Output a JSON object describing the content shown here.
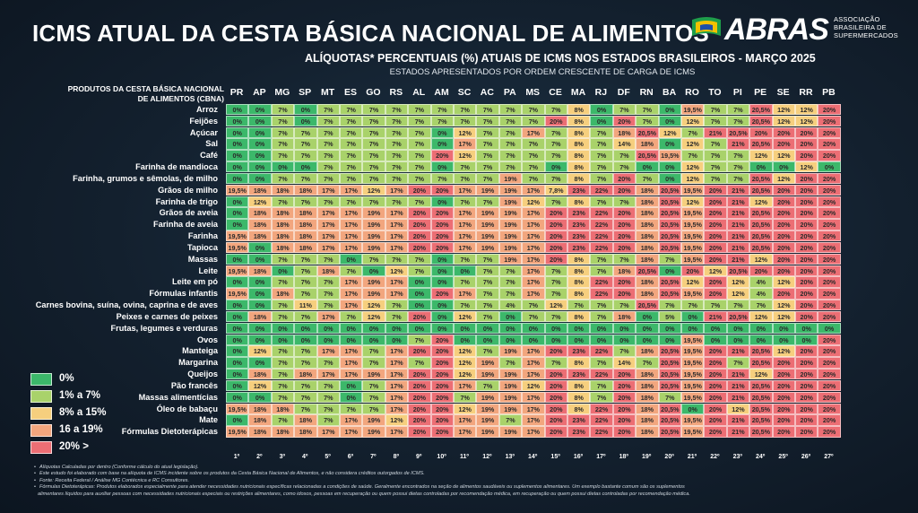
{
  "title": "ICMS ATUAL DA CESTA BÁSICA NACIONAL DE ALIMENTOS",
  "subtitle": "ALÍQUOTAS* PERCENTUAIS (%) ATUAIS DE ICMS NOS ESTADOS BRASILEIROS - MARÇO 2025",
  "subtitle2": "ESTADOS APRESENTADOS POR ORDEM CRESCENTE DE CARGA DE ICMS",
  "logo": {
    "name": "ABRAS",
    "subtitle_lines": [
      "ASSOCIAÇÃO",
      "BRASILEIRA DE",
      "SUPERMERCADOS"
    ]
  },
  "product_header_lines": [
    "PRODUTOS DA CESTA BÁSICA NACIONAL",
    "DE ALIMENTOS (CBNA)"
  ],
  "states": [
    "PR",
    "AP",
    "MG",
    "SP",
    "MT",
    "ES",
    "GO",
    "RS",
    "AL",
    "AM",
    "SC",
    "AC",
    "PA",
    "MS",
    "CE",
    "MA",
    "RJ",
    "DF",
    "RN",
    "BA",
    "RO",
    "TO",
    "PI",
    "PE",
    "SE",
    "RR",
    "PB"
  ],
  "ranks": [
    "1º",
    "2º",
    "3º",
    "4º",
    "5º",
    "6º",
    "7º",
    "8º",
    "9º",
    "10º",
    "11º",
    "12º",
    "13º",
    "14º",
    "15º",
    "16º",
    "17º",
    "18º",
    "19º",
    "20º",
    "21º",
    "22º",
    "23º",
    "24º",
    "25º",
    "26º",
    "27º"
  ],
  "colors": {
    "0%": "#3cb86a",
    "1% a 7%": "#a9d26a",
    "8% a 15%": "#f6cf7e",
    "16 a 19%": "#f2a67e",
    "20% >": "#ec6e74"
  },
  "legend": [
    {
      "label": "0%",
      "color": "#3cb86a"
    },
    {
      "label": "1% a 7%",
      "color": "#a9d26a"
    },
    {
      "label": "8% a 15%",
      "color": "#f6cf7e"
    },
    {
      "label": "16 a 19%",
      "color": "#f2a67e"
    },
    {
      "label": "20% >",
      "color": "#ec6e74"
    }
  ],
  "rows": [
    {
      "product": "Arroz",
      "values": [
        "0%",
        "0%",
        "7%",
        "0%",
        "7%",
        "7%",
        "7%",
        "7%",
        "7%",
        "7%",
        "7%",
        "7%",
        "7%",
        "7%",
        "7%",
        "8%",
        "0%",
        "7%",
        "7%",
        "0%",
        "19,5%",
        "7%",
        "7%",
        "20,5%",
        "12%",
        "12%",
        "20%"
      ]
    },
    {
      "product": "Feijões",
      "values": [
        "0%",
        "0%",
        "7%",
        "0%",
        "7%",
        "7%",
        "7%",
        "7%",
        "7%",
        "7%",
        "7%",
        "7%",
        "7%",
        "7%",
        "20%",
        "8%",
        "0%",
        "20%",
        "7%",
        "0%",
        "12%",
        "7%",
        "7%",
        "20,5%",
        "12%",
        "12%",
        "20%"
      ]
    },
    {
      "product": "Açúcar",
      "values": [
        "0%",
        "0%",
        "7%",
        "7%",
        "7%",
        "7%",
        "7%",
        "7%",
        "7%",
        "0%",
        "12%",
        "7%",
        "7%",
        "17%",
        "7%",
        "8%",
        "7%",
        "18%",
        "20,5%",
        "12%",
        "7%",
        "21%",
        "20,5%",
        "20%",
        "20%",
        "20%",
        "20%"
      ]
    },
    {
      "product": "Sal",
      "values": [
        "0%",
        "0%",
        "7%",
        "7%",
        "7%",
        "7%",
        "7%",
        "7%",
        "7%",
        "0%",
        "17%",
        "7%",
        "7%",
        "7%",
        "7%",
        "8%",
        "7%",
        "14%",
        "18%",
        "0%",
        "12%",
        "7%",
        "21%",
        "20,5%",
        "20%",
        "20%",
        "20%"
      ]
    },
    {
      "product": "Café",
      "values": [
        "0%",
        "0%",
        "7%",
        "7%",
        "7%",
        "7%",
        "7%",
        "7%",
        "7%",
        "20%",
        "12%",
        "7%",
        "7%",
        "7%",
        "7%",
        "8%",
        "7%",
        "7%",
        "20,5%",
        "19,5%",
        "7%",
        "7%",
        "7%",
        "12%",
        "12%",
        "20%",
        "20%"
      ]
    },
    {
      "product": "Farinha de mandioca",
      "values": [
        "0%",
        "0%",
        "0%",
        "0%",
        "7%",
        "7%",
        "7%",
        "7%",
        "7%",
        "0%",
        "7%",
        "7%",
        "7%",
        "7%",
        "0%",
        "8%",
        "7%",
        "7%",
        "0%",
        "0%",
        "12%",
        "7%",
        "7%",
        "0%",
        "0%",
        "12%",
        "0%"
      ]
    },
    {
      "product": "Farinha, grumos e sêmolas, de milho",
      "values": [
        "0%",
        "0%",
        "7%",
        "7%",
        "7%",
        "7%",
        "7%",
        "7%",
        "7%",
        "7%",
        "7%",
        "7%",
        "19%",
        "7%",
        "7%",
        "8%",
        "7%",
        "20%",
        "7%",
        "0%",
        "12%",
        "7%",
        "7%",
        "20,5%",
        "12%",
        "20%",
        "20%"
      ]
    },
    {
      "product": "Grãos de milho",
      "values": [
        "19,5%",
        "18%",
        "18%",
        "18%",
        "17%",
        "17%",
        "12%",
        "17%",
        "20%",
        "20%",
        "17%",
        "19%",
        "19%",
        "17%",
        "7,8%",
        "23%",
        "22%",
        "20%",
        "18%",
        "20,5%",
        "19,5%",
        "20%",
        "21%",
        "20,5%",
        "20%",
        "20%",
        "20%"
      ]
    },
    {
      "product": "Farinha de trigo",
      "values": [
        "0%",
        "12%",
        "7%",
        "7%",
        "7%",
        "7%",
        "7%",
        "7%",
        "7%",
        "0%",
        "7%",
        "7%",
        "19%",
        "12%",
        "7%",
        "8%",
        "7%",
        "7%",
        "18%",
        "20,5%",
        "12%",
        "20%",
        "21%",
        "12%",
        "20%",
        "20%",
        "20%"
      ]
    },
    {
      "product": "Grãos de aveia",
      "values": [
        "0%",
        "18%",
        "18%",
        "18%",
        "17%",
        "17%",
        "19%",
        "17%",
        "20%",
        "20%",
        "17%",
        "19%",
        "19%",
        "17%",
        "20%",
        "23%",
        "22%",
        "20%",
        "18%",
        "20,5%",
        "19,5%",
        "20%",
        "21%",
        "20,5%",
        "20%",
        "20%",
        "20%"
      ]
    },
    {
      "product": "Farinha de aveia",
      "values": [
        "0%",
        "18%",
        "18%",
        "18%",
        "17%",
        "17%",
        "19%",
        "17%",
        "20%",
        "20%",
        "17%",
        "19%",
        "19%",
        "17%",
        "20%",
        "23%",
        "22%",
        "20%",
        "18%",
        "20,5%",
        "19,5%",
        "20%",
        "21%",
        "20,5%",
        "20%",
        "20%",
        "20%"
      ]
    },
    {
      "product": "Farinha",
      "values": [
        "19,5%",
        "18%",
        "18%",
        "18%",
        "17%",
        "17%",
        "19%",
        "17%",
        "20%",
        "20%",
        "17%",
        "19%",
        "19%",
        "17%",
        "20%",
        "23%",
        "22%",
        "20%",
        "18%",
        "20,5%",
        "19,5%",
        "20%",
        "21%",
        "20,5%",
        "20%",
        "20%",
        "20%"
      ]
    },
    {
      "product": "Tapioca",
      "values": [
        "19,5%",
        "0%",
        "18%",
        "18%",
        "17%",
        "17%",
        "19%",
        "17%",
        "20%",
        "20%",
        "17%",
        "19%",
        "19%",
        "17%",
        "20%",
        "23%",
        "22%",
        "20%",
        "18%",
        "20,5%",
        "19,5%",
        "20%",
        "21%",
        "20,5%",
        "20%",
        "20%",
        "20%"
      ]
    },
    {
      "product": "Massas",
      "values": [
        "0%",
        "0%",
        "7%",
        "7%",
        "7%",
        "0%",
        "7%",
        "7%",
        "7%",
        "0%",
        "7%",
        "7%",
        "19%",
        "17%",
        "20%",
        "8%",
        "7%",
        "7%",
        "18%",
        "7%",
        "19,5%",
        "20%",
        "21%",
        "12%",
        "20%",
        "20%",
        "20%"
      ]
    },
    {
      "product": "Leite",
      "values": [
        "19,5%",
        "18%",
        "0%",
        "7%",
        "18%",
        "7%",
        "0%",
        "12%",
        "7%",
        "0%",
        "0%",
        "7%",
        "7%",
        "17%",
        "7%",
        "8%",
        "7%",
        "18%",
        "20,5%",
        "0%",
        "20%",
        "12%",
        "20,5%",
        "20%",
        "20%",
        "20%",
        "20%"
      ]
    },
    {
      "product": "Leite em pó",
      "values": [
        "0%",
        "0%",
        "7%",
        "7%",
        "7%",
        "17%",
        "19%",
        "17%",
        "0%",
        "0%",
        "7%",
        "7%",
        "7%",
        "17%",
        "7%",
        "8%",
        "22%",
        "20%",
        "18%",
        "20,5%",
        "12%",
        "20%",
        "12%",
        "4%",
        "12%",
        "20%",
        "20%"
      ]
    },
    {
      "product": "Fórmulas infantis",
      "values": [
        "19,5%",
        "0%",
        "18%",
        "7%",
        "7%",
        "17%",
        "19%",
        "17%",
        "0%",
        "20%",
        "17%",
        "7%",
        "7%",
        "17%",
        "7%",
        "8%",
        "22%",
        "20%",
        "18%",
        "20,5%",
        "19,5%",
        "20%",
        "12%",
        "4%",
        "20%",
        "20%",
        "20%"
      ]
    },
    {
      "product": "Carnes bovina, suína, ovina, caprina e de aves",
      "values": [
        "0%",
        "0%",
        "7%",
        "11%",
        "7%",
        "17%",
        "12%",
        "7%",
        "0%",
        "0%",
        "7%",
        "7%",
        "4%",
        "7%",
        "12%",
        "7%",
        "7%",
        "7%",
        "20,5%",
        "7%",
        "7%",
        "7%",
        "7%",
        "7%",
        "12%",
        "20%",
        "20%"
      ]
    },
    {
      "product": "Peixes e carnes de peixes",
      "values": [
        "0%",
        "18%",
        "7%",
        "7%",
        "17%",
        "7%",
        "12%",
        "7%",
        "20%",
        "0%",
        "12%",
        "7%",
        "0%",
        "7%",
        "7%",
        "8%",
        "7%",
        "18%",
        "0%",
        "5%",
        "0%",
        "21%",
        "20,5%",
        "12%",
        "12%",
        "20%",
        "20%"
      ]
    },
    {
      "product": "Frutas, legumes e verduras",
      "values": [
        "0%",
        "0%",
        "0%",
        "0%",
        "0%",
        "0%",
        "0%",
        "0%",
        "0%",
        "0%",
        "0%",
        "0%",
        "0%",
        "0%",
        "0%",
        "0%",
        "0%",
        "0%",
        "0%",
        "0%",
        "0%",
        "0%",
        "0%",
        "0%",
        "0%",
        "0%",
        "0%"
      ]
    },
    {
      "product": "Ovos",
      "values": [
        "0%",
        "0%",
        "0%",
        "0%",
        "0%",
        "0%",
        "0%",
        "0%",
        "7%",
        "20%",
        "0%",
        "0%",
        "0%",
        "0%",
        "0%",
        "0%",
        "0%",
        "0%",
        "0%",
        "0%",
        "19,5%",
        "0%",
        "0%",
        "0%",
        "0%",
        "0%",
        "20%"
      ]
    },
    {
      "product": "Manteiga",
      "values": [
        "0%",
        "12%",
        "7%",
        "7%",
        "17%",
        "17%",
        "7%",
        "17%",
        "20%",
        "20%",
        "12%",
        "7%",
        "19%",
        "17%",
        "20%",
        "23%",
        "22%",
        "7%",
        "18%",
        "20,5%",
        "19,5%",
        "20%",
        "21%",
        "20,5%",
        "12%",
        "20%",
        "20%"
      ]
    },
    {
      "product": "Margarina",
      "values": [
        "0%",
        "0%",
        "7%",
        "7%",
        "7%",
        "17%",
        "7%",
        "17%",
        "7%",
        "20%",
        "12%",
        "19%",
        "7%",
        "17%",
        "7%",
        "8%",
        "7%",
        "14%",
        "7%",
        "20,5%",
        "19,5%",
        "20%",
        "7%",
        "20,5%",
        "20%",
        "20%",
        "20%"
      ]
    },
    {
      "product": "Queijos",
      "values": [
        "0%",
        "18%",
        "7%",
        "18%",
        "17%",
        "17%",
        "19%",
        "17%",
        "20%",
        "20%",
        "12%",
        "19%",
        "19%",
        "17%",
        "20%",
        "23%",
        "22%",
        "20%",
        "18%",
        "20,5%",
        "19,5%",
        "20%",
        "21%",
        "12%",
        "20%",
        "20%",
        "20%"
      ]
    },
    {
      "product": "Pão francês",
      "values": [
        "0%",
        "12%",
        "7%",
        "7%",
        "7%",
        "0%",
        "7%",
        "17%",
        "20%",
        "20%",
        "17%",
        "7%",
        "19%",
        "12%",
        "20%",
        "8%",
        "7%",
        "20%",
        "18%",
        "20,5%",
        "19,5%",
        "20%",
        "21%",
        "20,5%",
        "20%",
        "20%",
        "20%"
      ]
    },
    {
      "product": "Massas alimentícias",
      "values": [
        "0%",
        "0%",
        "7%",
        "7%",
        "7%",
        "0%",
        "7%",
        "17%",
        "20%",
        "20%",
        "7%",
        "19%",
        "19%",
        "17%",
        "20%",
        "8%",
        "7%",
        "20%",
        "18%",
        "7%",
        "19,5%",
        "20%",
        "21%",
        "20,5%",
        "20%",
        "20%",
        "20%"
      ]
    },
    {
      "product": "Óleo de babaçu",
      "values": [
        "19,5%",
        "18%",
        "18%",
        "7%",
        "7%",
        "7%",
        "7%",
        "17%",
        "20%",
        "20%",
        "12%",
        "19%",
        "19%",
        "17%",
        "20%",
        "8%",
        "22%",
        "20%",
        "18%",
        "20,5%",
        "0%",
        "20%",
        "12%",
        "20,5%",
        "20%",
        "20%",
        "20%"
      ]
    },
    {
      "product": "Mate",
      "values": [
        "0%",
        "18%",
        "7%",
        "18%",
        "7%",
        "17%",
        "19%",
        "12%",
        "20%",
        "20%",
        "17%",
        "19%",
        "7%",
        "17%",
        "20%",
        "23%",
        "22%",
        "20%",
        "18%",
        "20,5%",
        "19,5%",
        "20%",
        "21%",
        "20,5%",
        "20%",
        "20%",
        "20%"
      ]
    },
    {
      "product": "Fórmulas Dietoterápicas",
      "values": [
        "19,5%",
        "18%",
        "18%",
        "18%",
        "17%",
        "17%",
        "19%",
        "17%",
        "20%",
        "20%",
        "17%",
        "19%",
        "19%",
        "17%",
        "20%",
        "23%",
        "22%",
        "20%",
        "18%",
        "20,5%",
        "19,5%",
        "20%",
        "21%",
        "20,5%",
        "20%",
        "20%",
        "20%"
      ]
    }
  ],
  "notes": [
    "Alíquotas Calculadas por dentro (Conforme cálculo do atual legislação).",
    "Este estudo foi elaborado com base na alíquota de ICMS incidente sobre os produtos da Cesta Básica Nacional de Alimentos, e não considera créditos outorgados de ICMS.",
    "Fonte: Receita Federal / Análise MG Contécnica e RC Consultores.",
    "Fórmulas Dietoterápicas: Produtos elaborados especialmente para atender necessidades nutricionais específicas relacionadas a condições de saúde. Geralmente encontrados na seção de alimentos saudáveis ou suplementos alimentares. Um exemplo bastante comum são os suplementos",
    "alimentares líquidos para auxiliar pessoas com necessidades nutricionais especiais ou restrições alimentares, como idosos, pessoas em recuperação ou quem possui dietas controladas por recomendação médica, em recuperação ou quem possui dietas controladas por recomendação médica."
  ]
}
